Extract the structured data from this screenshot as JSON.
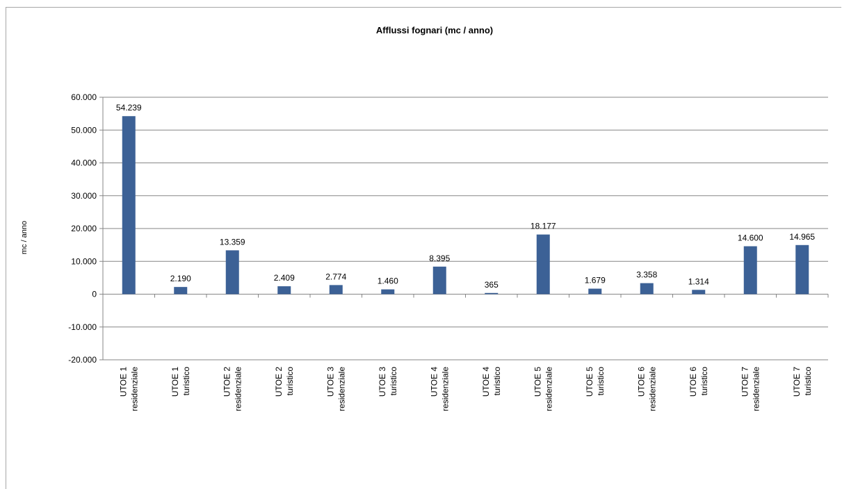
{
  "chart_data": {
    "type": "bar",
    "title": "Afflussi fognari  (mc / anno)",
    "ylabel": "mc / anno",
    "xlabel": "",
    "ylim": [
      -20000,
      60000
    ],
    "ytick_step": 10000,
    "ytick_labels": [
      "-20.000",
      "-10.000",
      "0",
      "10.000",
      "20.000",
      "30.000",
      "40.000",
      "50.000",
      "60.000"
    ],
    "grid": true,
    "legend": "none",
    "categories": [
      [
        "UTOE 1",
        "residenziale"
      ],
      [
        "UTOE 1",
        "turistico"
      ],
      [
        "UTOE 2",
        "residenziale"
      ],
      [
        "UTOE 2",
        "turistico"
      ],
      [
        "UTOE 3",
        "residenziale"
      ],
      [
        "UTOE 3",
        "turistico"
      ],
      [
        "UTOE 4",
        "residenziale"
      ],
      [
        "UTOE 4",
        "turistico"
      ],
      [
        "UTOE 5",
        "residenziale"
      ],
      [
        "UTOE 5",
        "turistico"
      ],
      [
        "UTOE 6",
        "residenziale"
      ],
      [
        "UTOE 6",
        "turistico"
      ],
      [
        "UTOE 7",
        "residenziale"
      ],
      [
        "UTOE 7",
        "turistico"
      ]
    ],
    "values": [
      54239,
      2190,
      13359,
      2409,
      2774,
      1460,
      8395,
      365,
      18177,
      1679,
      3358,
      1314,
      14600,
      14965
    ],
    "data_labels": [
      "54.239",
      "2.190",
      "13.359",
      "2.409",
      "2.774",
      "1.460",
      "8.395",
      "365",
      "18.177",
      "1.679",
      "3.358",
      "1.314",
      "14.600",
      "14.965"
    ],
    "colors": {
      "bar": "#3c6196",
      "grid": "#868686",
      "axis": "#868686"
    }
  }
}
